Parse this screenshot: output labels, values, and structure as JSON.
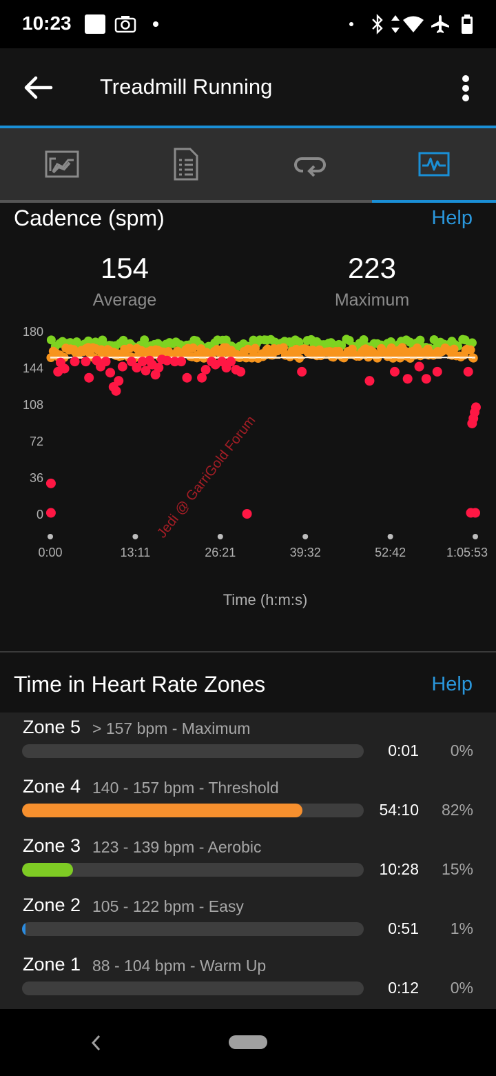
{
  "status_bar": {
    "time": "10:23",
    "icons": [
      "notification-square-icon",
      "camera-icon",
      "dot-icon",
      "bluetooth-icon",
      "data-arrows-icon",
      "wifi-icon",
      "airplane-icon",
      "battery-icon"
    ]
  },
  "app_bar": {
    "title": "Treadmill Running",
    "back_icon": "arrow-left-icon",
    "menu_icon": "more-vert-icon"
  },
  "tabs": [
    {
      "name": "overview",
      "icon": "map-chart-icon",
      "active": false
    },
    {
      "name": "details",
      "icon": "document-list-icon",
      "active": false
    },
    {
      "name": "laps",
      "icon": "loop-arrow-icon",
      "active": false
    },
    {
      "name": "charts",
      "icon": "activity-graph-icon",
      "active": true
    }
  ],
  "cadence": {
    "title": "Cadence (spm)",
    "help": "Help",
    "average_value": "154",
    "average_label": "Average",
    "maximum_value": "223",
    "maximum_label": "Maximum"
  },
  "chart_data": {
    "type": "scatter",
    "title": "",
    "xlabel": "Time (h:m:s)",
    "ylabel": "",
    "x_tick_labels": [
      "0:00",
      "13:11",
      "26:21",
      "39:32",
      "52:42",
      "1:05:53"
    ],
    "y_tick_labels": [
      "180",
      "144",
      "108",
      "72",
      "36",
      "0"
    ],
    "ylim": [
      0,
      180
    ],
    "xlim": [
      0,
      65.9
    ],
    "x_unit": "minutes",
    "average_line": 154,
    "colors": {
      "green": "#7ed321",
      "orange": "#f7941d",
      "red": "#ff1744"
    },
    "series": [
      {
        "color": "#7ed321",
        "band": [
          163,
          172
        ]
      },
      {
        "color": "#f7941d",
        "band": [
          153,
          164
        ]
      },
      {
        "color": "#ff1744",
        "points": [
          [
            0.1,
            30
          ],
          [
            0.1,
            1
          ],
          [
            1.2,
            140
          ],
          [
            1.6,
            149
          ],
          [
            2.2,
            143
          ],
          [
            3.8,
            150
          ],
          [
            5.5,
            150
          ],
          [
            6,
            134
          ],
          [
            7.2,
            151
          ],
          [
            7.8,
            145
          ],
          [
            8.6,
            150
          ],
          [
            9.3,
            139
          ],
          [
            9.8,
            125
          ],
          [
            10.2,
            121
          ],
          [
            10.6,
            131
          ],
          [
            11.2,
            145
          ],
          [
            12.6,
            150
          ],
          [
            13.4,
            144
          ],
          [
            14.3,
            150
          ],
          [
            14.8,
            141
          ],
          [
            15.4,
            151
          ],
          [
            15.8,
            147
          ],
          [
            16.3,
            137
          ],
          [
            16.8,
            144
          ],
          [
            17.3,
            152
          ],
          [
            18.1,
            151
          ],
          [
            19.3,
            150
          ],
          [
            20.3,
            150
          ],
          [
            21.2,
            134
          ],
          [
            23.5,
            134
          ],
          [
            24.1,
            142
          ],
          [
            25,
            150
          ],
          [
            25.6,
            147
          ],
          [
            26.6,
            150
          ],
          [
            27.3,
            144
          ],
          [
            28,
            150
          ],
          [
            28.8,
            142
          ],
          [
            29.5,
            140
          ],
          [
            30.5,
            0
          ],
          [
            39,
            140
          ],
          [
            49.5,
            131
          ],
          [
            53.4,
            140
          ],
          [
            55.4,
            133
          ],
          [
            57.2,
            145
          ],
          [
            58.3,
            133
          ],
          [
            60,
            140
          ],
          [
            64.8,
            140
          ],
          [
            65.4,
            89
          ],
          [
            65.6,
            94
          ],
          [
            65.8,
            100
          ],
          [
            66,
            105
          ],
          [
            65.2,
            1
          ],
          [
            65.9,
            1
          ]
        ]
      }
    ]
  },
  "watermark": "Jedi @ GarriGold Forum",
  "zones": {
    "title": "Time in Heart Rate Zones",
    "help": "Help",
    "items": [
      {
        "name": "Zone 5",
        "range": "> 157 bpm - Maximum",
        "time": "0:01",
        "percent": "0%",
        "fill": 0.0,
        "color": "#e02020"
      },
      {
        "name": "Zone 4",
        "range": "140 - 157 bpm - Threshold",
        "time": "54:10",
        "percent": "82%",
        "fill": 0.82,
        "color": "#f7902e"
      },
      {
        "name": "Zone 3",
        "range": "123 - 139 bpm - Aerobic",
        "time": "10:28",
        "percent": "15%",
        "fill": 0.15,
        "color": "#7ecb24"
      },
      {
        "name": "Zone 2",
        "range": "105 - 122 bpm - Easy",
        "time": "0:51",
        "percent": "1%",
        "fill": 0.01,
        "color": "#2b8ce0"
      },
      {
        "name": "Zone 1",
        "range": "88 - 104 bpm - Warm Up",
        "time": "0:12",
        "percent": "0%",
        "fill": 0.0,
        "color": "#9e9e9e"
      }
    ]
  },
  "nav_bar": {
    "back_icon": "nav-back-chevron-icon",
    "home_icon": "home-pill-icon"
  }
}
